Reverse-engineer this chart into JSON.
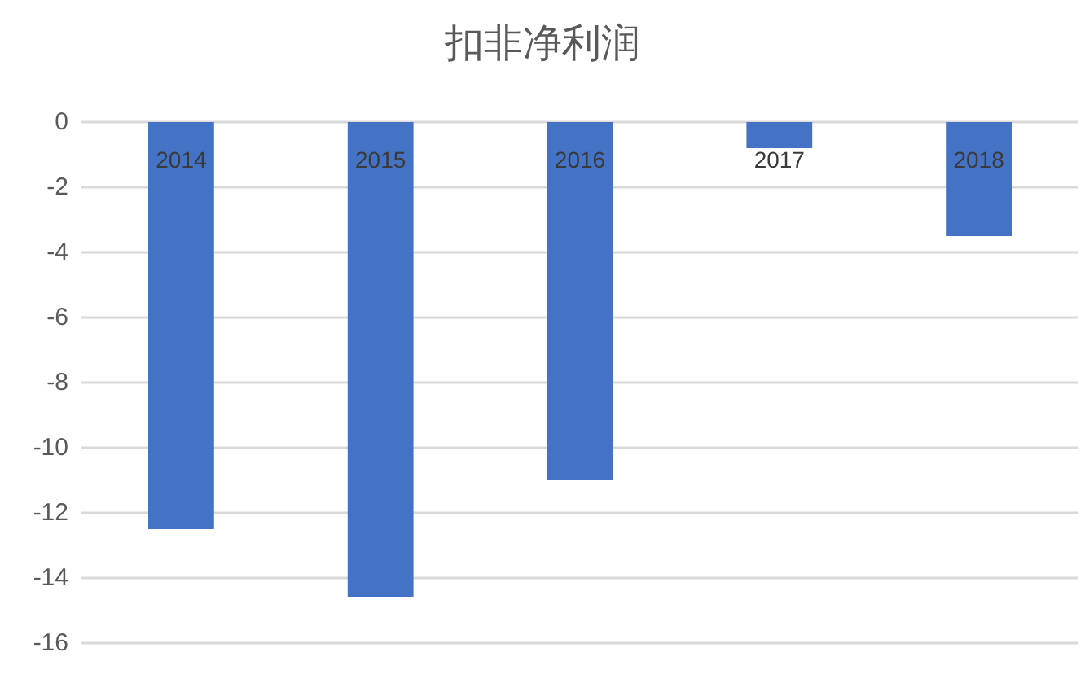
{
  "chart_data": {
    "type": "bar",
    "title": "扣非净利润",
    "categories": [
      "2014",
      "2015",
      "2016",
      "2017",
      "2018"
    ],
    "values": [
      -12.5,
      -14.6,
      -11.0,
      -0.8,
      -3.5
    ],
    "color": "#4472c4",
    "ylim": [
      -16,
      0
    ],
    "yticks": [
      -16,
      -14,
      -12,
      -10,
      -8,
      -6,
      -4,
      -2,
      0
    ],
    "grid": "y"
  }
}
